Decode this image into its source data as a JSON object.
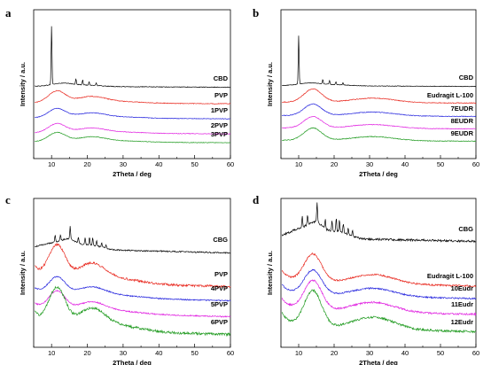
{
  "chart_data": [
    {
      "panel": "a",
      "type": "line",
      "xlabel": "2Theta / deg",
      "ylabel": "Intensity / a.u.",
      "xlim": [
        5,
        60
      ],
      "xticks": [
        10,
        20,
        30,
        40,
        50,
        60
      ],
      "series": [
        {
          "name": "CBD",
          "color": "#000000",
          "profile": "cbd"
        },
        {
          "name": "PVP",
          "color": "#e8271d",
          "profile": "pvp"
        },
        {
          "name": "1PVP",
          "color": "#2222dd",
          "profile": "pvp"
        },
        {
          "name": "2PVP",
          "color": "#e020e0",
          "profile": "pvp"
        },
        {
          "name": "3PVP",
          "color": "#1f9a1f",
          "profile": "pvp"
        }
      ]
    },
    {
      "panel": "b",
      "type": "line",
      "xlabel": "2Theta / deg",
      "ylabel": "Intensity / a.u.",
      "xlim": [
        5,
        60
      ],
      "xticks": [
        10,
        20,
        30,
        40,
        50,
        60
      ],
      "series": [
        {
          "name": "CBD",
          "color": "#000000",
          "profile": "cbd"
        },
        {
          "name": "Eudragit L-100",
          "color": "#e8271d",
          "profile": "eud"
        },
        {
          "name": "7EUDR",
          "color": "#2222dd",
          "profile": "eud"
        },
        {
          "name": "8EUDR",
          "color": "#e020e0",
          "profile": "eud"
        },
        {
          "name": "9EUDR",
          "color": "#1f9a1f",
          "profile": "eud"
        }
      ]
    },
    {
      "panel": "c",
      "type": "line",
      "xlabel": "2Theta / deg",
      "ylabel": "Intensity / a.u.",
      "xlim": [
        5,
        60
      ],
      "xticks": [
        10,
        20,
        30,
        40,
        50,
        60
      ],
      "series": [
        {
          "name": "CBG",
          "color": "#000000",
          "profile": "cbg"
        },
        {
          "name": "PVP",
          "color": "#e8271d",
          "profile": "pvp"
        },
        {
          "name": "4PVP",
          "color": "#2222dd",
          "profile": "pvp"
        },
        {
          "name": "5PVP",
          "color": "#e020e0",
          "profile": "pvp"
        },
        {
          "name": "6PVP",
          "color": "#1f9a1f",
          "profile": "pvp"
        }
      ]
    },
    {
      "panel": "d",
      "type": "line",
      "xlabel": "2Theta / deg",
      "ylabel": "Intensity / a.u.",
      "xlim": [
        5,
        60
      ],
      "xticks": [
        10,
        20,
        30,
        40,
        50,
        60
      ],
      "series": [
        {
          "name": "CBG",
          "color": "#000000",
          "profile": "cbg"
        },
        {
          "name": "Eudragit L-100",
          "color": "#e8271d",
          "profile": "eud"
        },
        {
          "name": "10Eudr",
          "color": "#2222dd",
          "profile": "eud"
        },
        {
          "name": "11Eudr",
          "color": "#e020e0",
          "profile": "eud"
        },
        {
          "name": "12Eudr",
          "color": "#1f9a1f",
          "profile": "eud"
        }
      ]
    }
  ]
}
